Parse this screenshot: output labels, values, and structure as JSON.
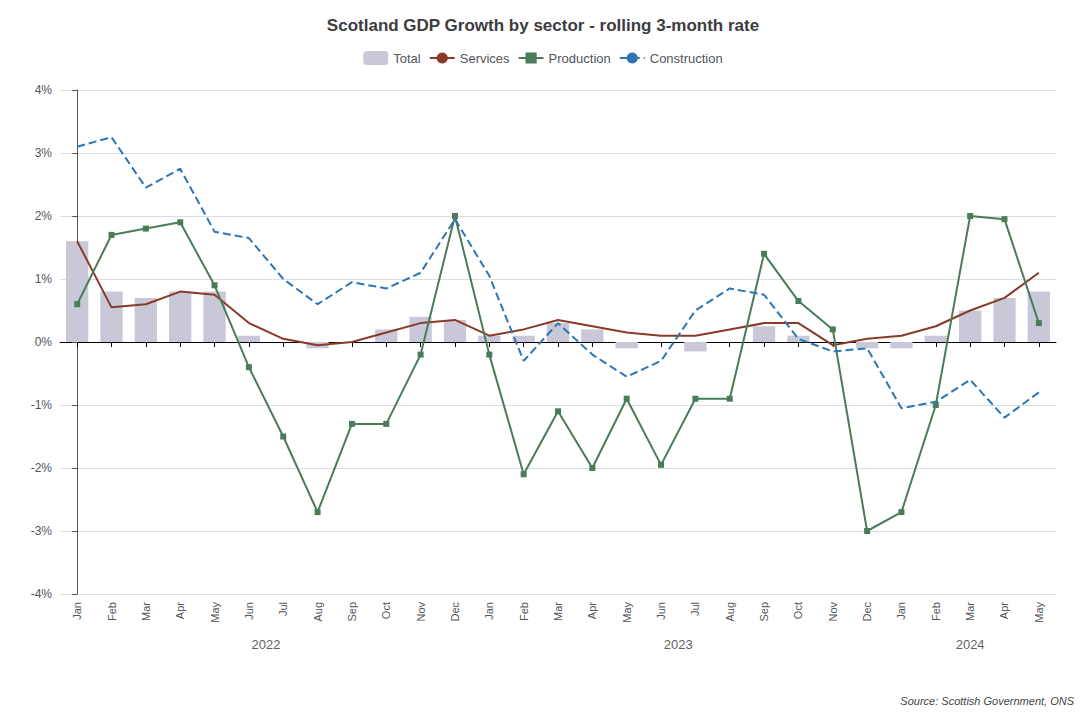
{
  "chart_data": {
    "type": "bar",
    "title": "Scotland GDP Growth by sector - rolling 3-month rate",
    "source": "Source: Scottish Government, ONS",
    "categories": [
      "Jan",
      "Feb",
      "Mar",
      "Apr",
      "May",
      "Jun",
      "Jul",
      "Aug",
      "Sep",
      "Oct",
      "Nov",
      "Dec",
      "Jan",
      "Feb",
      "Mar",
      "Apr",
      "May",
      "Jun",
      "Jul",
      "Aug",
      "Sep",
      "Oct",
      "Nov",
      "Dec",
      "Jan",
      "Feb",
      "Mar",
      "Apr",
      "May"
    ],
    "annotations": [
      {
        "text": "2022",
        "x": 5.5
      },
      {
        "text": "2023",
        "x": 17.5
      },
      {
        "text": "2024",
        "x": 26
      }
    ],
    "series": [
      {
        "name": "Total",
        "type": "bar",
        "color": "#c8c8d8",
        "values": [
          1.6,
          0.8,
          0.7,
          0.8,
          0.8,
          0.1,
          0.0,
          -0.1,
          0.0,
          0.2,
          0.4,
          0.35,
          0.1,
          0.1,
          0.3,
          0.2,
          -0.1,
          0.0,
          -0.15,
          0.0,
          0.25,
          0.1,
          0.0,
          -0.1,
          -0.1,
          0.1,
          0.5,
          0.7,
          0.8
        ]
      },
      {
        "name": "Services",
        "type": "line",
        "color": "#8B3A2A",
        "marker": "none",
        "line_style": "solid",
        "values": [
          1.6,
          0.55,
          0.6,
          0.8,
          0.75,
          0.3,
          0.05,
          -0.05,
          0.0,
          0.15,
          0.3,
          0.35,
          0.1,
          0.2,
          0.35,
          0.25,
          0.15,
          0.1,
          0.1,
          0.2,
          0.3,
          0.3,
          -0.05,
          0.05,
          0.1,
          0.25,
          0.5,
          0.7,
          1.1
        ]
      },
      {
        "name": "Production",
        "type": "line",
        "color": "#4A7C59",
        "marker": "square",
        "line_style": "solid",
        "values": [
          0.6,
          1.7,
          1.8,
          1.9,
          0.9,
          -0.4,
          -1.5,
          -2.7,
          -1.3,
          -1.3,
          -0.2,
          2.0,
          -0.2,
          -2.1,
          -1.1,
          -2.0,
          -0.9,
          -1.95,
          -0.9,
          -0.9,
          1.4,
          0.65,
          0.2,
          -3.0,
          -2.7,
          -1.0,
          2.0,
          1.95,
          0.3
        ]
      },
      {
        "name": "Construction",
        "type": "line",
        "color": "#2E75B6",
        "marker": "none",
        "line_style": "dashed",
        "values": [
          3.1,
          3.25,
          2.45,
          2.75,
          1.75,
          1.65,
          1.0,
          0.6,
          0.95,
          0.85,
          1.1,
          1.95,
          1.05,
          -0.3,
          0.3,
          -0.2,
          -0.55,
          -0.3,
          0.5,
          0.85,
          0.75,
          0.05,
          -0.15,
          -0.1,
          -1.05,
          -0.95,
          -0.6,
          -1.2,
          -0.8
        ]
      }
    ],
    "ylim": [
      -4,
      4
    ],
    "yticks": [
      {
        "value": -4,
        "label": "-4%"
      },
      {
        "value": -3,
        "label": "-3%"
      },
      {
        "value": -2,
        "label": "-2%"
      },
      {
        "value": -1,
        "label": "-1%"
      },
      {
        "value": 0,
        "label": "0%"
      },
      {
        "value": 1,
        "label": "1%"
      },
      {
        "value": 2,
        "label": "2%"
      },
      {
        "value": 3,
        "label": "3%"
      },
      {
        "value": 4,
        "label": "4%"
      }
    ],
    "grid": true,
    "legend": "top"
  }
}
